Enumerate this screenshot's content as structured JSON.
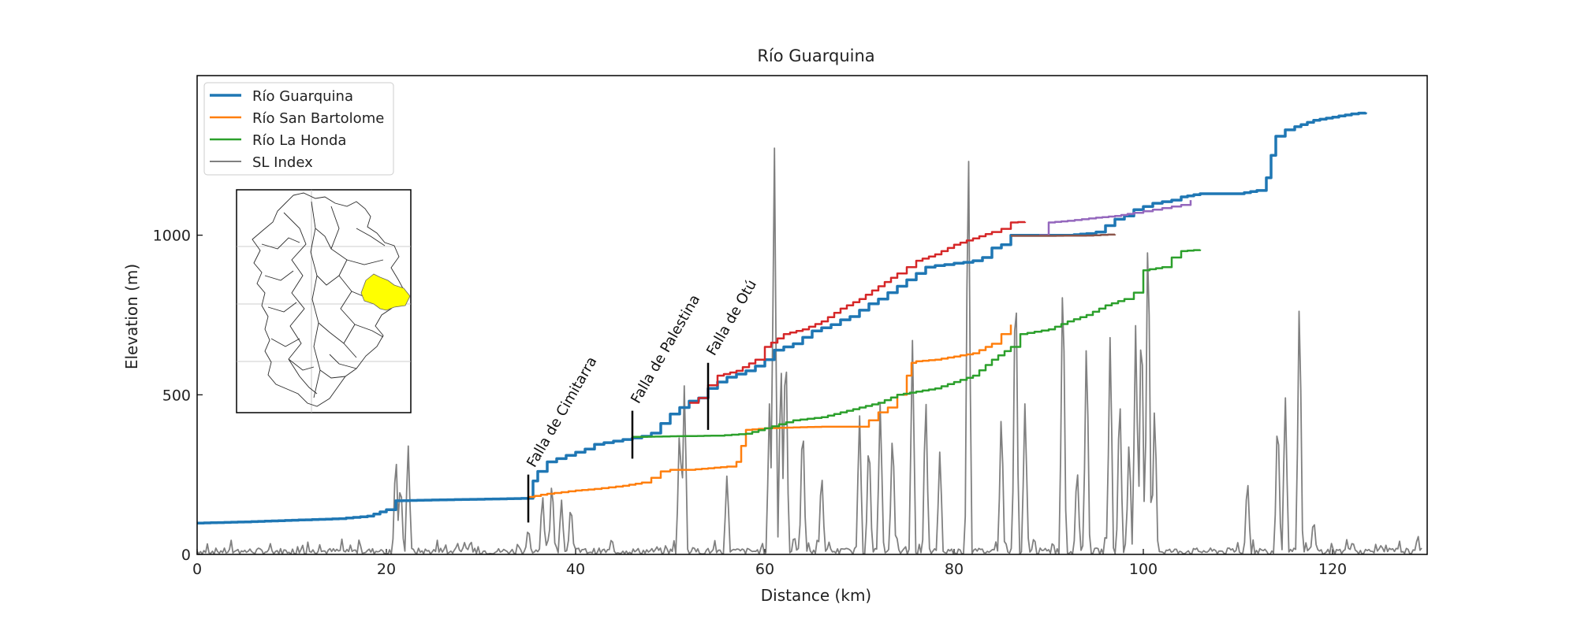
{
  "chart_data": {
    "type": "line",
    "title": "Río Guarquina",
    "xlabel": "Distance (km)",
    "ylabel": "Elevation (m)",
    "xlim": [
      0,
      130
    ],
    "ylim": [
      0,
      1500
    ],
    "xticks": [
      0,
      20,
      40,
      60,
      80,
      100,
      120
    ],
    "yticks": [
      0,
      500,
      1000
    ],
    "grid": false,
    "legend_position": "top-left",
    "series": [
      {
        "name": "Río Guarquina",
        "color": "#1f77b4",
        "width": 3.5,
        "x": [
          0,
          5,
          10,
          15,
          18,
          20,
          21,
          24,
          28,
          32,
          35,
          35.5,
          36,
          37,
          38,
          39,
          40,
          41,
          42,
          43,
          44,
          45,
          46,
          47,
          48,
          49,
          50,
          51,
          52,
          53,
          54,
          55,
          56,
          57,
          58,
          59,
          60,
          61,
          62,
          63,
          64,
          65,
          66,
          67,
          68,
          69,
          70,
          71,
          72,
          73,
          74,
          75,
          76,
          77,
          78,
          79,
          80,
          81,
          82,
          83,
          84,
          85,
          86,
          87,
          88,
          90,
          92,
          94,
          95,
          96,
          97,
          98,
          99,
          100,
          101,
          102,
          103,
          104,
          106,
          108,
          110,
          112,
          113,
          113.5,
          114,
          115,
          116,
          118,
          120,
          122,
          123.5
        ],
        "y": [
          98,
          102,
          107,
          112,
          120,
          140,
          168,
          170,
          172,
          174,
          176,
          230,
          260,
          290,
          300,
          310,
          320,
          330,
          345,
          350,
          355,
          360,
          365,
          370,
          380,
          410,
          440,
          460,
          480,
          490,
          520,
          540,
          555,
          565,
          575,
          590,
          610,
          640,
          650,
          660,
          680,
          700,
          710,
          720,
          735,
          745,
          765,
          785,
          800,
          820,
          840,
          860,
          880,
          900,
          905,
          908,
          912,
          915,
          920,
          930,
          960,
          970,
          1000,
          1000,
          1000,
          1000,
          1000,
          1005,
          1010,
          1030,
          1050,
          1060,
          1080,
          1090,
          1100,
          1105,
          1110,
          1120,
          1130,
          1130,
          1130,
          1140,
          1180,
          1250,
          1310,
          1330,
          1340,
          1360,
          1370,
          1380,
          1385
        ]
      },
      {
        "name": "Río San Bartolome",
        "color": "#ff7f0e",
        "width": 2.5,
        "x": [
          35,
          37,
          40,
          42,
          45,
          47,
          48,
          49,
          50,
          52,
          54,
          56,
          57,
          57.5,
          58,
          60,
          63,
          66,
          70,
          71,
          72,
          73,
          74,
          75,
          75.5,
          76,
          78,
          80,
          82,
          84,
          85,
          86
        ],
        "y": [
          180,
          190,
          200,
          205,
          215,
          225,
          240,
          260,
          265,
          265,
          270,
          275,
          290,
          340,
          390,
          395,
          398,
          400,
          400,
          420,
          445,
          460,
          500,
          560,
          600,
          605,
          610,
          620,
          630,
          660,
          690,
          720
        ]
      },
      {
        "name": "Río La Honda",
        "color": "#2ca02c",
        "width": 2.5,
        "x": [
          46,
          50,
          55,
          58,
          60,
          63,
          66,
          68,
          70,
          72,
          74,
          76,
          78,
          80,
          82,
          84,
          86,
          87,
          90,
          92,
          94,
          96,
          98,
          99,
          100,
          102,
          103,
          104,
          106
        ],
        "y": [
          368,
          370,
          372,
          378,
          395,
          420,
          430,
          445,
          460,
          475,
          500,
          510,
          520,
          540,
          560,
          610,
          650,
          690,
          705,
          730,
          750,
          780,
          800,
          820,
          890,
          900,
          930,
          950,
          955
        ]
      },
      {
        "name": "",
        "color": "#d62728",
        "width": 2.5,
        "x": [
          52,
          53,
          54,
          55,
          57,
          59,
          60,
          62,
          64,
          66,
          68,
          70,
          72,
          74,
          75,
          76,
          78,
          80,
          82,
          84,
          85,
          86,
          87.5
        ],
        "y": [
          475,
          490,
          530,
          560,
          575,
          610,
          650,
          690,
          705,
          730,
          770,
          800,
          840,
          880,
          900,
          920,
          940,
          970,
          990,
          1010,
          1020,
          1040,
          1042
        ]
      },
      {
        "name": "",
        "color": "#9467bd",
        "width": 2.5,
        "x": [
          89,
          90,
          92,
          95,
          97,
          99,
          100,
          101,
          102,
          103,
          104,
          105
        ],
        "y": [
          1000,
          1040,
          1045,
          1055,
          1060,
          1070,
          1075,
          1080,
          1085,
          1090,
          1095,
          1110
        ]
      },
      {
        "name": "",
        "color": "#8c564b",
        "width": 2.5,
        "x": [
          86,
          90,
          94,
          97
        ],
        "y": [
          998,
          998,
          999,
          1003
        ]
      },
      {
        "name": "SL Index",
        "color": "#808080",
        "width": 1.8,
        "kind": "sl_index",
        "base": [
          0,
          20
        ],
        "noise": [
          0,
          40
        ],
        "peaks": [
          {
            "x": 21,
            "y": 340
          },
          {
            "x": 21.5,
            "y": 250
          },
          {
            "x": 22.3,
            "y": 360
          },
          {
            "x": 35,
            "y": 90
          },
          {
            "x": 36.5,
            "y": 200
          },
          {
            "x": 37.5,
            "y": 250
          },
          {
            "x": 38.5,
            "y": 180
          },
          {
            "x": 39.5,
            "y": 170
          },
          {
            "x": 51,
            "y": 440
          },
          {
            "x": 51.5,
            "y": 560
          },
          {
            "x": 56,
            "y": 260
          },
          {
            "x": 60.5,
            "y": 500
          },
          {
            "x": 61,
            "y": 1350
          },
          {
            "x": 61.7,
            "y": 640
          },
          {
            "x": 62.2,
            "y": 740
          },
          {
            "x": 64,
            "y": 460
          },
          {
            "x": 66,
            "y": 280
          },
          {
            "x": 70,
            "y": 460
          },
          {
            "x": 71,
            "y": 400
          },
          {
            "x": 72.2,
            "y": 500
          },
          {
            "x": 73.5,
            "y": 420
          },
          {
            "x": 75.6,
            "y": 670
          },
          {
            "x": 77,
            "y": 530
          },
          {
            "x": 78.5,
            "y": 340
          },
          {
            "x": 81.5,
            "y": 1390
          },
          {
            "x": 85,
            "y": 470
          },
          {
            "x": 86.5,
            "y": 980
          },
          {
            "x": 87.5,
            "y": 500
          },
          {
            "x": 91.5,
            "y": 970
          },
          {
            "x": 93,
            "y": 300
          },
          {
            "x": 94,
            "y": 720
          },
          {
            "x": 96.5,
            "y": 720
          },
          {
            "x": 97.5,
            "y": 550
          },
          {
            "x": 98.5,
            "y": 380
          },
          {
            "x": 99.2,
            "y": 760
          },
          {
            "x": 99.8,
            "y": 830
          },
          {
            "x": 100.5,
            "y": 1140
          },
          {
            "x": 101.2,
            "y": 500
          },
          {
            "x": 111,
            "y": 260
          },
          {
            "x": 114.2,
            "y": 480
          },
          {
            "x": 115,
            "y": 520
          },
          {
            "x": 116.5,
            "y": 860
          },
          {
            "x": 118,
            "y": 120
          }
        ]
      }
    ],
    "annotations": [
      {
        "text": "Falla de Cimitarra",
        "x": 35,
        "y_low": 100,
        "y_high": 250
      },
      {
        "text": "Falla de Palestina",
        "x": 46,
        "y_low": 300,
        "y_high": 450
      },
      {
        "text": "Falla de Otú",
        "x": 54,
        "y_low": 390,
        "y_high": 600
      }
    ],
    "inset_map": {
      "highlight_color": "#ffff00"
    }
  }
}
